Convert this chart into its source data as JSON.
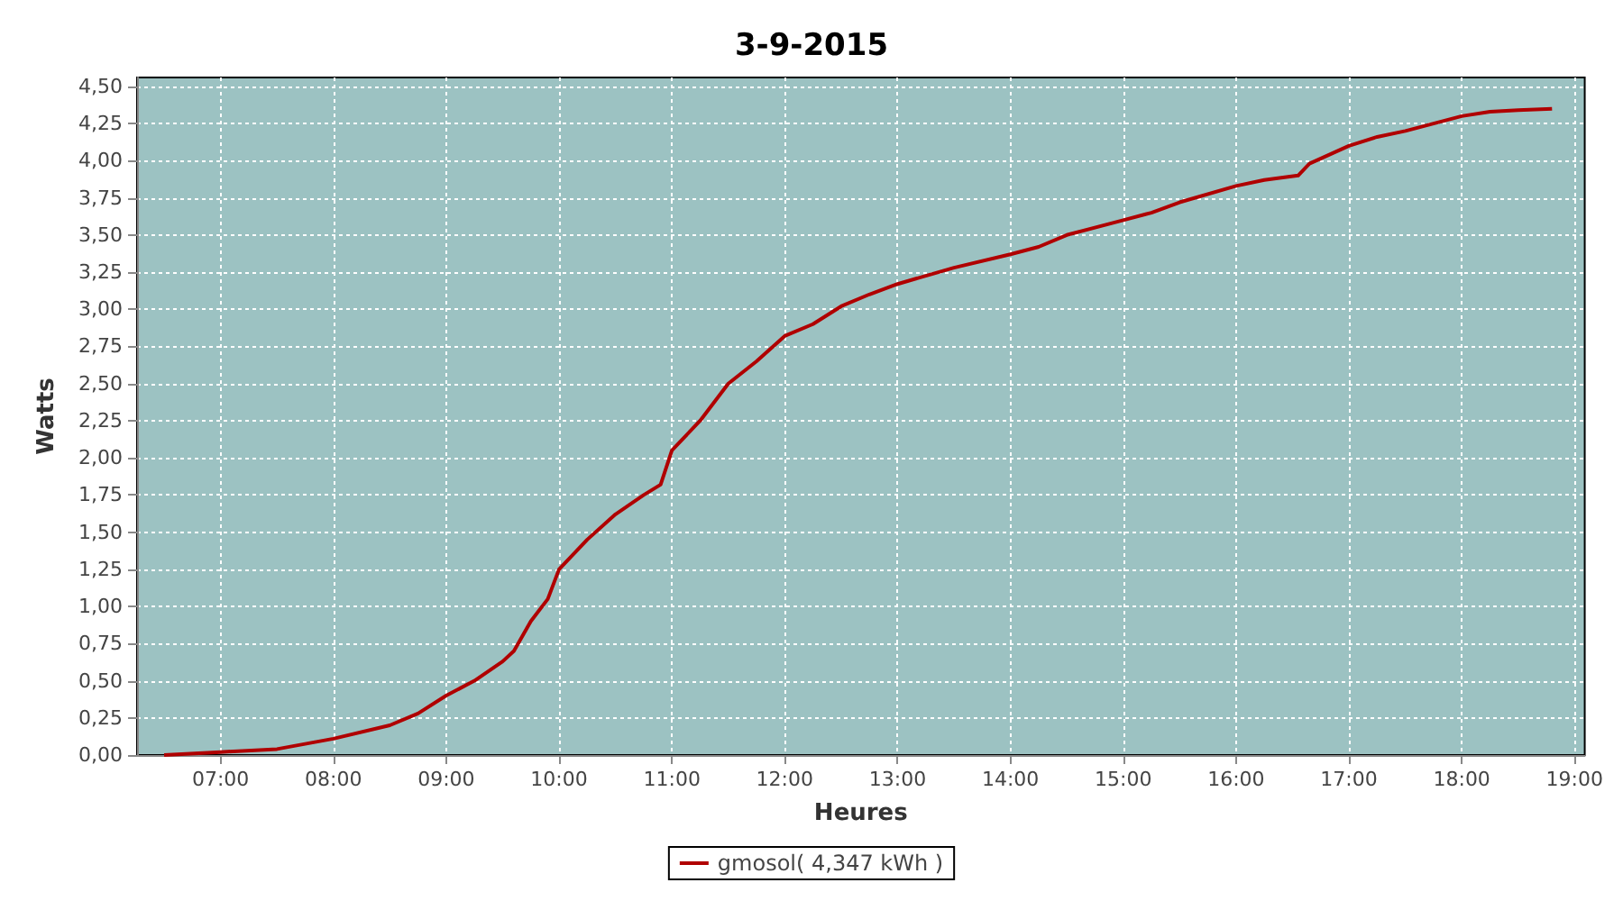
{
  "chart_data": {
    "type": "line",
    "title": "3-9-2015",
    "xlabel": "Heures",
    "ylabel": "Watts",
    "x": [
      6.5,
      7.0,
      7.5,
      8.0,
      8.5,
      8.75,
      9.0,
      9.25,
      9.5,
      9.6,
      9.75,
      9.9,
      10.0,
      10.25,
      10.5,
      10.75,
      10.9,
      11.0,
      11.25,
      11.5,
      11.75,
      12.0,
      12.25,
      12.5,
      12.75,
      13.0,
      13.5,
      14.0,
      14.25,
      14.5,
      15.0,
      15.25,
      15.5,
      16.0,
      16.25,
      16.55,
      16.65,
      17.0,
      17.25,
      17.5,
      18.0,
      18.25,
      18.5,
      18.8
    ],
    "series": [
      {
        "name": "gmosol( 4,347 kWh )",
        "color": "#b00000",
        "values": [
          0,
          0.02,
          0.04,
          0.11,
          0.2,
          0.28,
          0.4,
          0.5,
          0.63,
          0.7,
          0.9,
          1.05,
          1.25,
          1.45,
          1.62,
          1.75,
          1.82,
          2.05,
          2.25,
          2.5,
          2.65,
          2.82,
          2.9,
          3.02,
          3.1,
          3.17,
          3.28,
          3.37,
          3.42,
          3.5,
          3.6,
          3.65,
          3.72,
          3.83,
          3.87,
          3.9,
          3.98,
          4.1,
          4.16,
          4.2,
          4.3,
          4.33,
          4.34,
          4.35
        ]
      }
    ],
    "xlim": [
      6.26,
      19.09
    ],
    "xticks": [
      {
        "value": 7,
        "label": "07:00"
      },
      {
        "value": 8,
        "label": "08:00"
      },
      {
        "value": 9,
        "label": "09:00"
      },
      {
        "value": 10,
        "label": "10:00"
      },
      {
        "value": 11,
        "label": "11:00"
      },
      {
        "value": 12,
        "label": "12:00"
      },
      {
        "value": 13,
        "label": "13:00"
      },
      {
        "value": 14,
        "label": "14:00"
      },
      {
        "value": 15,
        "label": "15:00"
      },
      {
        "value": 16,
        "label": "16:00"
      },
      {
        "value": 17,
        "label": "17:00"
      },
      {
        "value": 18,
        "label": "18:00"
      },
      {
        "value": 19,
        "label": "19:00"
      }
    ],
    "ylim": [
      0,
      4.56
    ],
    "yticks": [
      {
        "value": 0,
        "label": "0,00"
      },
      {
        "value": 0.25,
        "label": "0,25"
      },
      {
        "value": 0.5,
        "label": "0,50"
      },
      {
        "value": 0.75,
        "label": "0,75"
      },
      {
        "value": 1,
        "label": "1,00"
      },
      {
        "value": 1.25,
        "label": "1,25"
      },
      {
        "value": 1.5,
        "label": "1,50"
      },
      {
        "value": 1.75,
        "label": "1,75"
      },
      {
        "value": 2,
        "label": "2,00"
      },
      {
        "value": 2.25,
        "label": "2,25"
      },
      {
        "value": 2.5,
        "label": "2,50"
      },
      {
        "value": 2.75,
        "label": "2,75"
      },
      {
        "value": 3,
        "label": "3,00"
      },
      {
        "value": 3.25,
        "label": "3,25"
      },
      {
        "value": 3.5,
        "label": "3,50"
      },
      {
        "value": 3.75,
        "label": "3,75"
      },
      {
        "value": 4,
        "label": "4,00"
      },
      {
        "value": 4.25,
        "label": "4,25"
      },
      {
        "value": 4.5,
        "label": "4,50"
      }
    ],
    "grid": true,
    "legend": "bottom",
    "marker": "none",
    "line_style": "solid"
  }
}
